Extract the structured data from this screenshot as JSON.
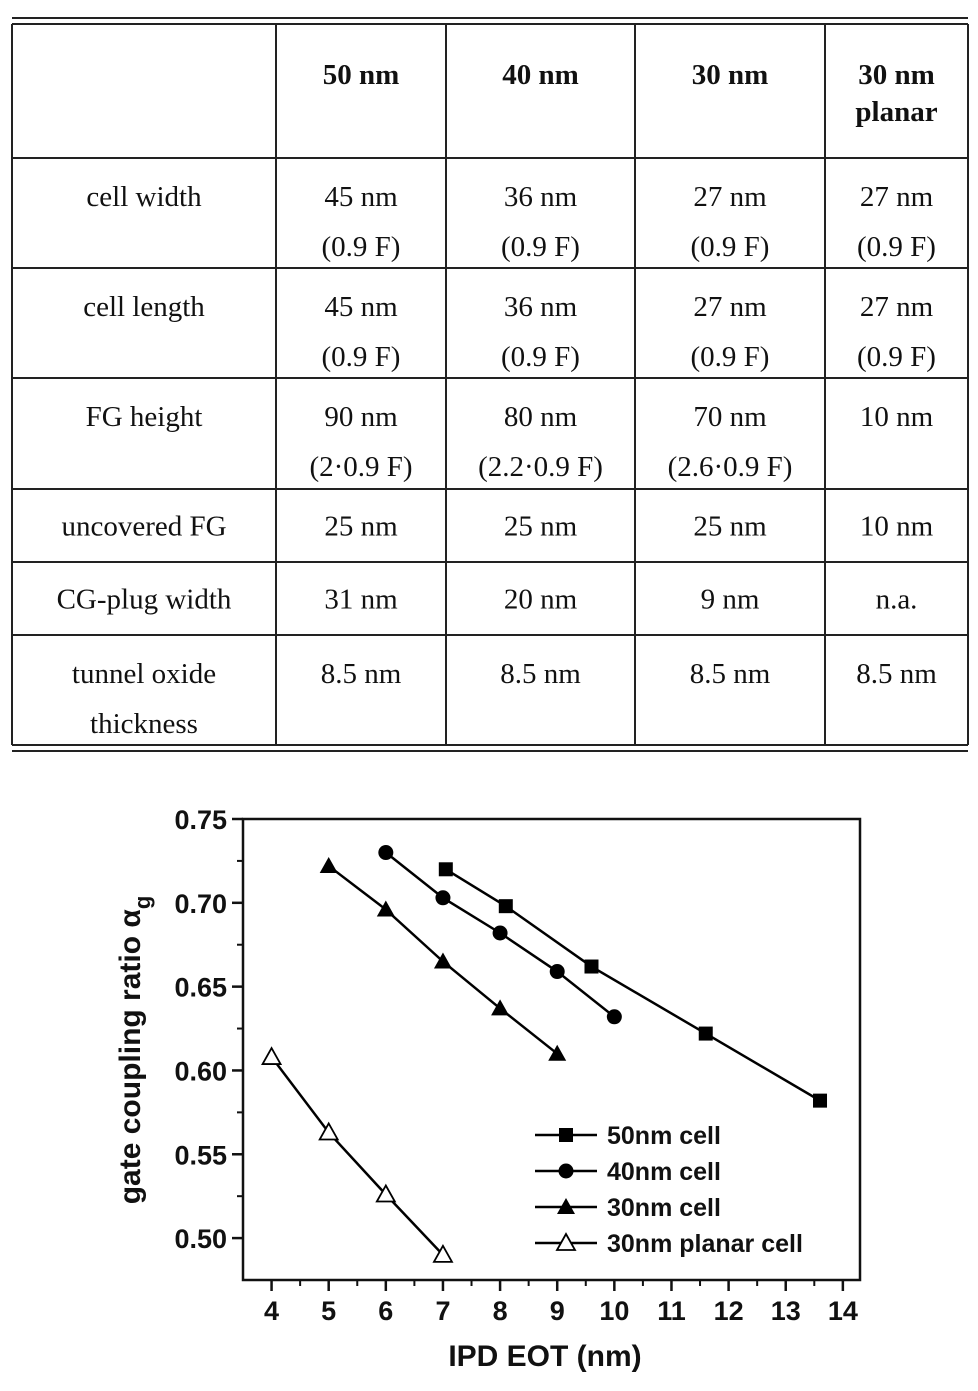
{
  "table": {
    "header": [
      [],
      [
        "50 nm"
      ],
      [
        "40 nm"
      ],
      [
        "30 nm"
      ],
      [
        "30 nm",
        "planar"
      ]
    ],
    "rows": [
      [
        [
          "cell  width"
        ],
        [
          "45 nm",
          "(0.9 F)"
        ],
        [
          "36 nm",
          "(0.9 F)"
        ],
        [
          "27 nm",
          "(0.9 F)"
        ],
        [
          "27 nm",
          "(0.9 F)"
        ]
      ],
      [
        [
          "cell  length"
        ],
        [
          "45 nm",
          "(0.9 F)"
        ],
        [
          "36 nm",
          "(0.9 F)"
        ],
        [
          "27 nm",
          "(0.9 F)"
        ],
        [
          "27 nm",
          "(0.9 F)"
        ]
      ],
      [
        [
          "FG  height"
        ],
        [
          "90 nm",
          "(2·0.9  F)"
        ],
        [
          "80 nm",
          "(2.2·0.9 F)"
        ],
        [
          "70 nm",
          "(2.6·0.9 F)"
        ],
        [
          "10 nm"
        ]
      ],
      [
        [
          "uncovered  FG"
        ],
        [
          "25 nm"
        ],
        [
          "25 nm"
        ],
        [
          "25 nm"
        ],
        [
          "10 nm"
        ]
      ],
      [
        [
          "CG-plug  width"
        ],
        [
          "31 nm"
        ],
        [
          "20 nm"
        ],
        [
          "9 nm"
        ],
        [
          "n.a."
        ]
      ],
      [
        [
          "tunnel  oxide",
          "thickness"
        ],
        [
          "8.5 nm"
        ],
        [
          "8.5 nm"
        ],
        [
          "8.5 nm"
        ],
        [
          "8.5 nm"
        ]
      ]
    ]
  },
  "chart_data": {
    "type": "line",
    "xlabel": "IPD EOT (nm)",
    "ylabel": [
      "gate coupling ratio α",
      "g"
    ],
    "xlim": [
      3.5,
      14.3
    ],
    "ylim": [
      0.475,
      0.75
    ],
    "xticks": [
      4,
      5,
      6,
      7,
      8,
      9,
      10,
      11,
      12,
      13,
      14
    ],
    "yticks": [
      {
        "value": 0.5,
        "label": "0.50"
      },
      {
        "value": 0.55,
        "label": "0.55"
      },
      {
        "value": 0.6,
        "label": "0.60"
      },
      {
        "value": 0.65,
        "label": "0.65"
      },
      {
        "value": 0.7,
        "label": "0.70"
      },
      {
        "value": 0.75,
        "label": "0.75"
      }
    ],
    "legend": "lower right",
    "series": [
      {
        "name": "50nm cell",
        "color": "#000000",
        "marker": "square",
        "x": [
          7.05,
          8.1,
          9.6,
          11.6,
          13.6
        ],
        "values": [
          0.72,
          0.698,
          0.662,
          0.622,
          0.582
        ]
      },
      {
        "name": "40nm cell",
        "color": "#000000",
        "marker": "circle",
        "x": [
          6,
          7,
          8,
          9,
          10
        ],
        "values": [
          0.73,
          0.703,
          0.682,
          0.659,
          0.632
        ]
      },
      {
        "name": "30nm cell",
        "color": "#000000",
        "marker": "triangle",
        "x": [
          5,
          6,
          7,
          8,
          9
        ],
        "values": [
          0.722,
          0.696,
          0.665,
          0.637,
          0.61
        ]
      },
      {
        "name": "30nm planar cell",
        "color": "#000000",
        "marker": "open-triangle",
        "x": [
          4,
          5,
          6,
          7
        ],
        "values": [
          0.608,
          0.563,
          0.526,
          0.49
        ]
      }
    ]
  }
}
